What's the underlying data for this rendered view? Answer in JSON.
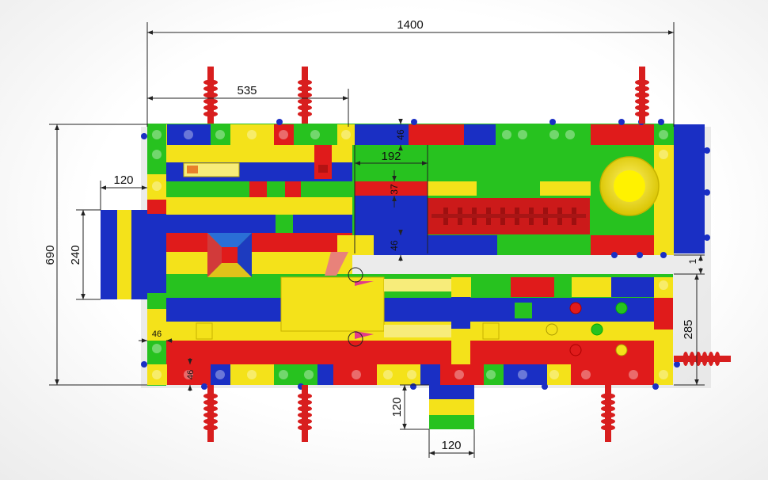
{
  "colors": {
    "red": "#e01b1b",
    "yellow": "#f4e21a",
    "green": "#27c21f",
    "blue": "#1a2fc4",
    "pink": "#e23a8a",
    "dim_line": "#222222"
  },
  "dimensions": {
    "overall_length": "1400",
    "section_length": "535",
    "side_extension_width": "120",
    "overall_width": "690",
    "side_extension_length": "240",
    "chute_width": "192",
    "wall_top": "46",
    "wall_mid_a": "37",
    "wall_mid_b": "46",
    "gap": "1",
    "lower_section_width": "285",
    "wall_left": "46",
    "wall_bottom": "46",
    "front_extension_length": "120",
    "front_extension_width": "120"
  }
}
